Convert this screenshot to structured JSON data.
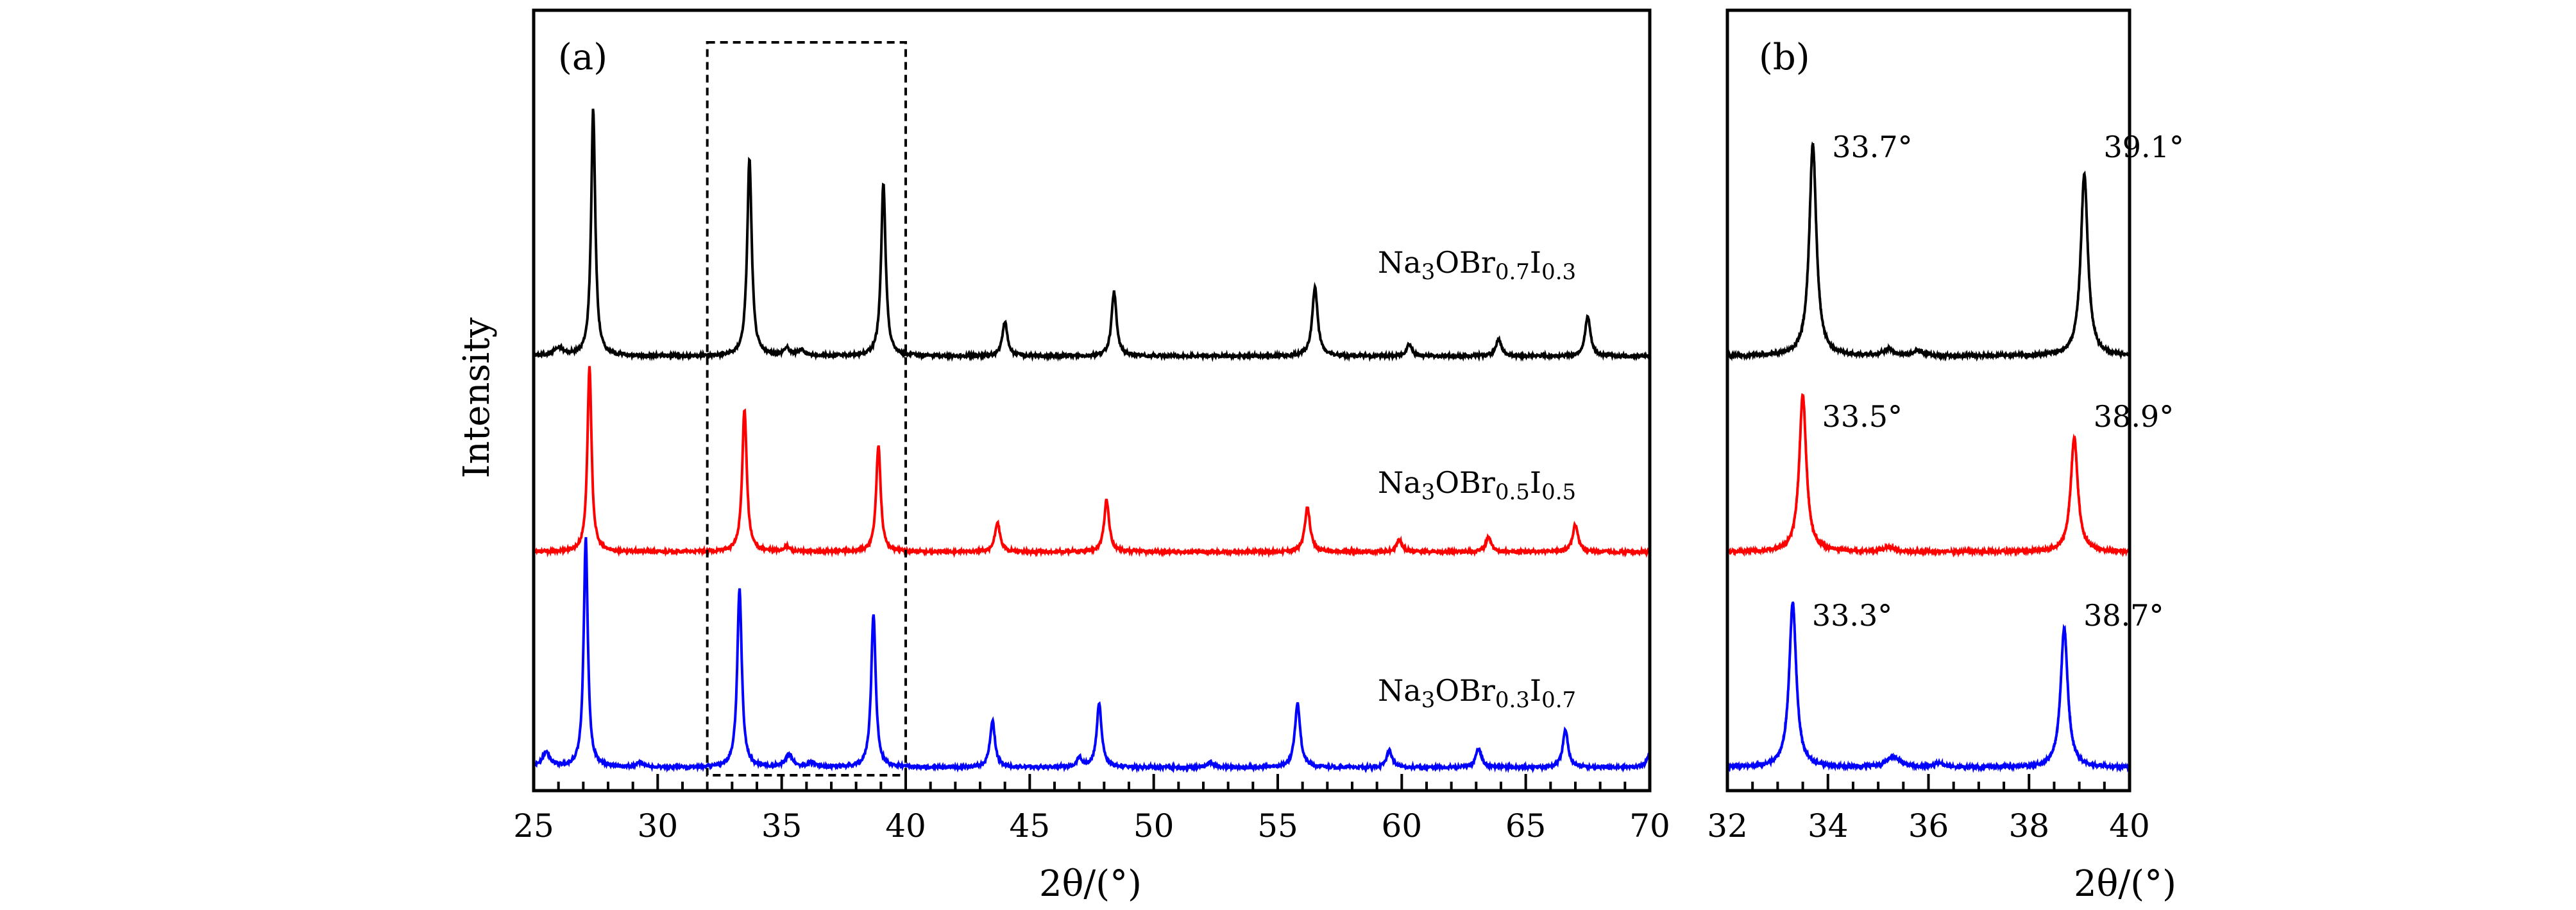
{
  "chart_data": [
    {
      "panel": "(a)",
      "type": "line",
      "xlabel": "2θ/(°)",
      "ylabel": "Intensity",
      "xlim": [
        25,
        70
      ],
      "xticks": [
        25,
        30,
        35,
        40,
        45,
        50,
        55,
        60,
        65,
        70
      ],
      "y_ticks_shown": false,
      "grid": false,
      "highlight_box": {
        "x": [
          32,
          40
        ]
      },
      "series": [
        {
          "name": "Na3OBr0.7I0.3",
          "label": {
            "main1": "Na",
            "sub1": "3",
            "main2": "OBr",
            "sub2": "0.7",
            "main3": "I",
            "sub3": "0.3"
          },
          "color": "#000000",
          "baseline": 1.0,
          "peaks": [
            {
              "x": 26.0,
              "h": 0.03,
              "w": 0.25
            },
            {
              "x": 27.4,
              "h": 1.0,
              "w": 0.1
            },
            {
              "x": 33.7,
              "h": 0.8,
              "w": 0.11
            },
            {
              "x": 35.2,
              "h": 0.03,
              "w": 0.15
            },
            {
              "x": 35.8,
              "h": 0.025,
              "w": 0.15
            },
            {
              "x": 39.1,
              "h": 0.7,
              "w": 0.11
            },
            {
              "x": 44.0,
              "h": 0.14,
              "w": 0.12
            },
            {
              "x": 48.4,
              "h": 0.26,
              "w": 0.12
            },
            {
              "x": 56.5,
              "h": 0.28,
              "w": 0.13
            },
            {
              "x": 60.3,
              "h": 0.05,
              "w": 0.13
            },
            {
              "x": 63.9,
              "h": 0.07,
              "w": 0.13
            },
            {
              "x": 67.5,
              "h": 0.16,
              "w": 0.13
            }
          ]
        },
        {
          "name": "Na3OBr0.5I0.5",
          "label": {
            "main1": "Na",
            "sub1": "3",
            "main2": "OBr",
            "sub2": "0.5",
            "main3": "I",
            "sub3": "0.5"
          },
          "color": "#ff0000",
          "baseline": 0.0,
          "peaks": [
            {
              "x": 27.25,
              "h": 0.75,
              "w": 0.1
            },
            {
              "x": 33.5,
              "h": 0.58,
              "w": 0.11
            },
            {
              "x": 35.2,
              "h": 0.02,
              "w": 0.15
            },
            {
              "x": 38.9,
              "h": 0.43,
              "w": 0.11
            },
            {
              "x": 43.7,
              "h": 0.12,
              "w": 0.12
            },
            {
              "x": 48.1,
              "h": 0.21,
              "w": 0.12
            },
            {
              "x": 56.2,
              "h": 0.18,
              "w": 0.13
            },
            {
              "x": 59.9,
              "h": 0.05,
              "w": 0.13
            },
            {
              "x": 63.5,
              "h": 0.06,
              "w": 0.13
            },
            {
              "x": 67.0,
              "h": 0.11,
              "w": 0.13
            }
          ]
        },
        {
          "name": "Na3OBr0.3I0.7",
          "label": {
            "main1": "Na",
            "sub1": "3",
            "main2": "OBr",
            "sub2": "0.3",
            "main3": "I",
            "sub3": "0.7"
          },
          "color": "#0000ff",
          "baseline": -1.0,
          "peaks": [
            {
              "x": 25.5,
              "h": 0.06,
              "w": 0.2
            },
            {
              "x": 27.1,
              "h": 0.93,
              "w": 0.1
            },
            {
              "x": 29.3,
              "h": 0.02,
              "w": 0.15
            },
            {
              "x": 33.3,
              "h": 0.72,
              "w": 0.11
            },
            {
              "x": 35.3,
              "h": 0.05,
              "w": 0.18
            },
            {
              "x": 36.2,
              "h": 0.02,
              "w": 0.15
            },
            {
              "x": 38.7,
              "h": 0.62,
              "w": 0.11
            },
            {
              "x": 43.5,
              "h": 0.19,
              "w": 0.12
            },
            {
              "x": 47.0,
              "h": 0.04,
              "w": 0.12
            },
            {
              "x": 47.8,
              "h": 0.26,
              "w": 0.12
            },
            {
              "x": 52.3,
              "h": 0.02,
              "w": 0.15
            },
            {
              "x": 55.8,
              "h": 0.26,
              "w": 0.13
            },
            {
              "x": 59.5,
              "h": 0.07,
              "w": 0.13
            },
            {
              "x": 63.1,
              "h": 0.08,
              "w": 0.13
            },
            {
              "x": 66.6,
              "h": 0.15,
              "w": 0.13
            },
            {
              "x": 70.0,
              "h": 0.06,
              "w": 0.13
            }
          ]
        }
      ]
    },
    {
      "panel": "(b)",
      "type": "line",
      "xlabel": "2θ/(°)",
      "ylabel": "",
      "xlim": [
        32,
        40
      ],
      "xticks": [
        32,
        34,
        36,
        38,
        40
      ],
      "y_ticks_shown": false,
      "grid": false,
      "series": [
        {
          "name": "Na3OBr0.7I0.3",
          "color": "#000000",
          "baseline": 1.0,
          "peaks": [
            {
              "x": 33.7,
              "h": 1.0,
              "w": 0.085
            },
            {
              "x": 35.2,
              "h": 0.03,
              "w": 0.12
            },
            {
              "x": 35.8,
              "h": 0.025,
              "w": 0.12
            },
            {
              "x": 39.1,
              "h": 0.86,
              "w": 0.085
            }
          ],
          "annotations": [
            {
              "text": "33.7°",
              "x": 33.7
            },
            {
              "text": "39.1°",
              "x": 39.1
            }
          ]
        },
        {
          "name": "Na3OBr0.5I0.5",
          "color": "#ff0000",
          "baseline": 0.0,
          "peaks": [
            {
              "x": 33.5,
              "h": 0.74,
              "w": 0.085
            },
            {
              "x": 35.2,
              "h": 0.02,
              "w": 0.12
            },
            {
              "x": 38.9,
              "h": 0.54,
              "w": 0.085
            }
          ],
          "annotations": [
            {
              "text": "33.5°",
              "x": 33.5
            },
            {
              "text": "38.9°",
              "x": 38.9
            }
          ]
        },
        {
          "name": "Na3OBr0.3I0.7",
          "color": "#0000ff",
          "baseline": -1.0,
          "peaks": [
            {
              "x": 33.3,
              "h": 0.78,
              "w": 0.085
            },
            {
              "x": 35.3,
              "h": 0.05,
              "w": 0.15
            },
            {
              "x": 36.2,
              "h": 0.02,
              "w": 0.12
            },
            {
              "x": 38.7,
              "h": 0.66,
              "w": 0.085
            }
          ],
          "annotations": [
            {
              "text": "33.3°",
              "x": 33.3
            },
            {
              "text": "38.7°",
              "x": 38.7
            }
          ]
        }
      ]
    }
  ]
}
